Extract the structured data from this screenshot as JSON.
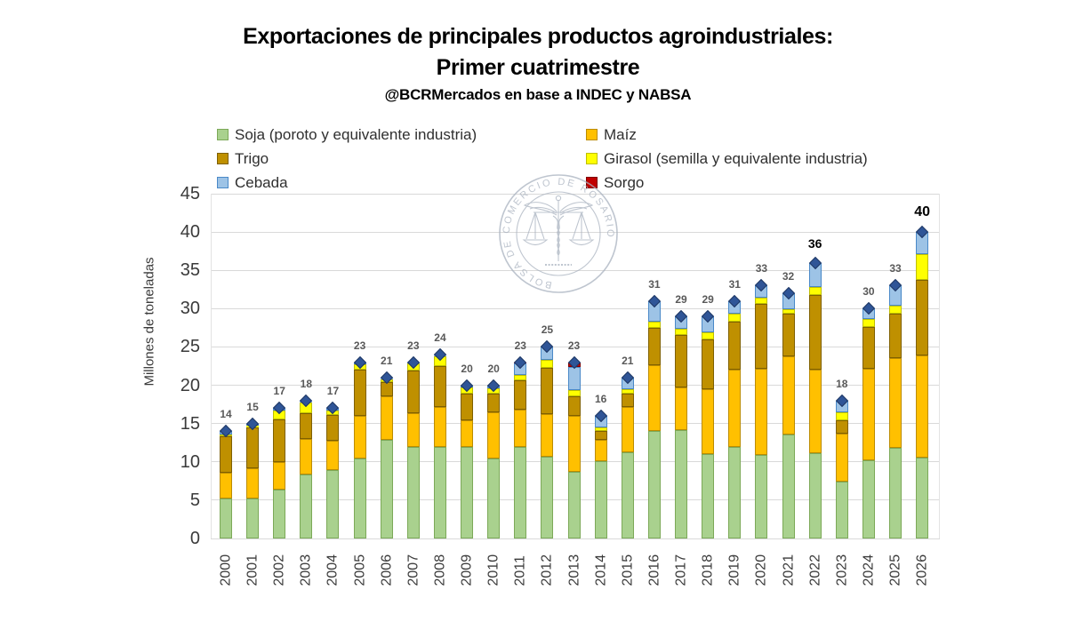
{
  "header": {
    "title_line1": "Exportaciones de principales productos agroindustriales:",
    "title_line2": "Primer cuatrimestre",
    "source": "@BCRMercados en base a INDEC y NABSA"
  },
  "watermark": {
    "seal_text": "BOLSA DE COMERCIO DE ROSARIO"
  },
  "chart_data": {
    "type": "bar",
    "stacked": true,
    "title": "Exportaciones de principales productos agroindustriales: Primer cuatrimestre",
    "subtitle": "@BCRMercados en base a INDEC y NABSA",
    "xlabel": "",
    "ylabel": "Millones de toneladas",
    "ylim": [
      0,
      45
    ],
    "ytick_step": 5,
    "grid": "horizontal",
    "legend_position": "top, two columns",
    "categories": [
      "2000",
      "2001",
      "2002",
      "2003",
      "2004",
      "2005",
      "2006",
      "2007",
      "2008",
      "2009",
      "2010",
      "2011",
      "2012",
      "2013",
      "2014",
      "2015",
      "2016",
      "2017",
      "2018",
      "2019",
      "2020",
      "2021",
      "2022",
      "2023",
      "2024",
      "2025",
      "2026"
    ],
    "series": [
      {
        "name": "Soja (poroto y equivalente industria)",
        "color": "#A9D18E",
        "border": "#7CA958",
        "values": [
          5.2,
          5.2,
          6.4,
          8.3,
          8.9,
          10.4,
          12.9,
          12.0,
          12.0,
          12.0,
          10.4,
          11.9,
          10.7,
          8.7,
          10.1,
          11.2,
          14.0,
          14.2,
          11.0,
          12.0,
          10.9,
          13.6,
          11.1,
          7.4,
          10.2,
          11.8,
          10.5
        ]
      },
      {
        "name": "Maíz",
        "color": "#FFC000",
        "border": "#BC8C00",
        "values": [
          3.4,
          4.0,
          3.6,
          4.7,
          3.8,
          5.6,
          5.6,
          4.4,
          5.2,
          3.4,
          6.1,
          4.9,
          5.5,
          7.3,
          2.8,
          6.0,
          8.6,
          5.5,
          8.5,
          10.0,
          11.3,
          10.2,
          10.9,
          6.3,
          11.9,
          11.8,
          13.4
        ]
      },
      {
        "name": "Trigo",
        "color": "#BF9000",
        "border": "#7F6000",
        "values": [
          4.7,
          5.3,
          5.5,
          3.3,
          3.4,
          6.0,
          1.9,
          5.5,
          5.3,
          3.5,
          2.4,
          3.8,
          6.1,
          2.5,
          1.1,
          1.7,
          4.9,
          6.9,
          6.5,
          6.3,
          8.4,
          5.5,
          9.8,
          1.7,
          5.5,
          5.7,
          9.8
        ]
      },
      {
        "name": "Girasol (semilla y equivalente industria)",
        "color": "#FFFF00",
        "border": "#BFBF00",
        "values": [
          0.3,
          0.2,
          1.2,
          1.5,
          0.6,
          0.7,
          0.4,
          0.9,
          1.3,
          0.8,
          0.7,
          0.7,
          1.0,
          0.9,
          0.5,
          0.6,
          0.8,
          0.8,
          0.9,
          1.0,
          0.8,
          0.6,
          1.0,
          1.1,
          1.0,
          1.1,
          3.4
        ]
      },
      {
        "name": "Cebada",
        "color": "#9DC3E6",
        "border": "#4A89C8",
        "values": [
          0.4,
          0.3,
          0.3,
          0.2,
          0.3,
          0.3,
          0.2,
          0.2,
          0.2,
          0.3,
          0.4,
          1.5,
          1.7,
          3.0,
          1.5,
          1.5,
          2.7,
          1.6,
          2.1,
          1.7,
          1.6,
          2.1,
          3.2,
          1.5,
          1.4,
          2.6,
          2.9
        ]
      },
      {
        "name": "Sorgo",
        "color": "#C00000",
        "border": "#7F0000",
        "values": [
          0,
          0,
          0,
          0,
          0,
          0,
          0,
          0,
          0,
          0,
          0,
          0.2,
          0,
          0.6,
          0,
          0,
          0,
          0,
          0,
          0,
          0,
          0,
          0,
          0,
          0,
          0,
          0
        ]
      }
    ],
    "totals": [
      14,
      15,
      17,
      18,
      17,
      23,
      21,
      23,
      24,
      20,
      20,
      23,
      25,
      23,
      16,
      21,
      31,
      29,
      29,
      31,
      33,
      32,
      36,
      18,
      30,
      33,
      40
    ],
    "total_marker": {
      "shape": "diamond",
      "color": "#2F5597"
    },
    "total_emphasis": {
      "2022": "em1",
      "2026": "em2"
    }
  }
}
